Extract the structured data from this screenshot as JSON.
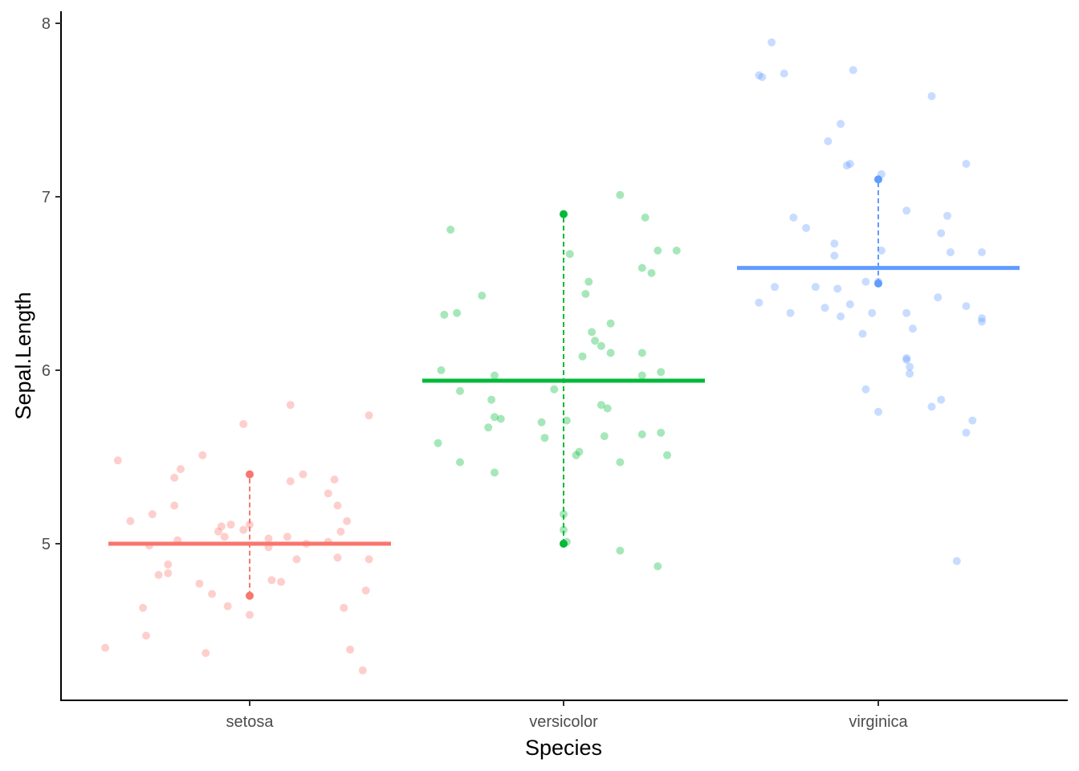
{
  "chart_data": {
    "type": "scatter",
    "subtype": "jitter strip plot with median line and dashed interval",
    "title": "",
    "xlabel": "Species",
    "ylabel": "Sepal.Length",
    "categories": [
      "setosa",
      "versicolor",
      "virginica"
    ],
    "ylim": [
      4.2,
      8.08
    ],
    "yticks": [
      5,
      6,
      7,
      8
    ],
    "grid": false,
    "legend": "none",
    "series": [
      {
        "name": "setosa",
        "color": "#F8766D",
        "center": 5.0,
        "interval": [
          4.7,
          5.4
        ],
        "points": [
          [
            -0.46,
            4.4
          ],
          [
            -0.42,
            5.48
          ],
          [
            -0.38,
            5.13
          ],
          [
            -0.33,
            4.47
          ],
          [
            -0.34,
            4.63
          ],
          [
            -0.32,
            4.99
          ],
          [
            -0.31,
            5.17
          ],
          [
            -0.29,
            4.82
          ],
          [
            -0.26,
            4.88
          ],
          [
            -0.26,
            4.83
          ],
          [
            -0.24,
            5.22
          ],
          [
            -0.23,
            5.02
          ],
          [
            -0.24,
            5.38
          ],
          [
            -0.22,
            5.43
          ],
          [
            -0.16,
            4.77
          ],
          [
            -0.15,
            5.51
          ],
          [
            -0.14,
            4.37
          ],
          [
            -0.12,
            4.71
          ],
          [
            -0.1,
            5.07
          ],
          [
            -0.09,
            5.1
          ],
          [
            -0.08,
            5.04
          ],
          [
            -0.07,
            4.64
          ],
          [
            -0.06,
            5.11
          ],
          [
            -0.02,
            5.69
          ],
          [
            -0.02,
            5.08
          ],
          [
            0.0,
            4.59
          ],
          [
            0.0,
            5.11
          ],
          [
            0.06,
            5.03
          ],
          [
            0.06,
            4.98
          ],
          [
            0.07,
            4.79
          ],
          [
            0.1,
            4.78
          ],
          [
            0.12,
            5.04
          ],
          [
            0.13,
            5.8
          ],
          [
            0.13,
            5.36
          ],
          [
            0.15,
            4.91
          ],
          [
            0.17,
            5.4
          ],
          [
            0.18,
            5.0
          ],
          [
            0.25,
            5.01
          ],
          [
            0.25,
            5.29
          ],
          [
            0.27,
            5.37
          ],
          [
            0.28,
            5.22
          ],
          [
            0.28,
            4.92
          ],
          [
            0.29,
            5.07
          ],
          [
            0.3,
            4.63
          ],
          [
            0.31,
            5.13
          ],
          [
            0.32,
            4.39
          ],
          [
            0.36,
            4.27
          ],
          [
            0.37,
            4.73
          ],
          [
            0.38,
            5.74
          ],
          [
            0.38,
            4.91
          ]
        ]
      },
      {
        "name": "versicolor",
        "color": "#00BA38",
        "center": 5.94,
        "interval": [
          5.0,
          6.9
        ],
        "points": [
          [
            -0.4,
            5.58
          ],
          [
            -0.39,
            6.0
          ],
          [
            -0.38,
            6.32
          ],
          [
            -0.36,
            6.81
          ],
          [
            -0.34,
            6.33
          ],
          [
            -0.33,
            5.88
          ],
          [
            -0.33,
            5.47
          ],
          [
            -0.26,
            6.43
          ],
          [
            -0.24,
            5.67
          ],
          [
            -0.23,
            5.83
          ],
          [
            -0.22,
            5.41
          ],
          [
            -0.22,
            5.97
          ],
          [
            -0.22,
            5.73
          ],
          [
            -0.2,
            5.72
          ],
          [
            -0.07,
            5.7
          ],
          [
            -0.06,
            5.61
          ],
          [
            -0.03,
            5.89
          ],
          [
            0.0,
            5.17
          ],
          [
            0.0,
            5.08
          ],
          [
            0.01,
            5.01
          ],
          [
            0.01,
            5.71
          ],
          [
            0.02,
            6.67
          ],
          [
            0.04,
            5.51
          ],
          [
            0.05,
            5.53
          ],
          [
            0.06,
            6.08
          ],
          [
            0.07,
            6.44
          ],
          [
            0.08,
            6.51
          ],
          [
            0.09,
            6.22
          ],
          [
            0.1,
            6.17
          ],
          [
            0.12,
            6.14
          ],
          [
            0.12,
            5.8
          ],
          [
            0.13,
            5.62
          ],
          [
            0.14,
            5.78
          ],
          [
            0.15,
            6.27
          ],
          [
            0.15,
            6.1
          ],
          [
            0.18,
            7.01
          ],
          [
            0.18,
            5.47
          ],
          [
            0.25,
            6.1
          ],
          [
            0.25,
            6.59
          ],
          [
            0.25,
            5.63
          ],
          [
            0.25,
            5.97
          ],
          [
            0.26,
            6.88
          ],
          [
            0.28,
            6.56
          ],
          [
            0.3,
            4.87
          ],
          [
            0.3,
            6.69
          ],
          [
            0.31,
            5.64
          ],
          [
            0.31,
            5.99
          ],
          [
            0.33,
            5.51
          ],
          [
            0.36,
            6.69
          ],
          [
            0.18,
            4.96
          ]
        ]
      },
      {
        "name": "virginica",
        "color": "#619CFF",
        "center": 6.59,
        "interval": [
          6.5,
          7.1
        ],
        "points": [
          [
            -0.38,
            6.39
          ],
          [
            -0.38,
            7.7
          ],
          [
            -0.37,
            7.69
          ],
          [
            -0.33,
            6.48
          ],
          [
            -0.34,
            7.89
          ],
          [
            -0.3,
            7.71
          ],
          [
            -0.28,
            6.33
          ],
          [
            -0.27,
            6.88
          ],
          [
            -0.23,
            6.82
          ],
          [
            -0.2,
            6.48
          ],
          [
            -0.17,
            6.36
          ],
          [
            -0.16,
            7.32
          ],
          [
            -0.14,
            6.73
          ],
          [
            -0.14,
            6.66
          ],
          [
            -0.13,
            6.47
          ],
          [
            -0.12,
            6.31
          ],
          [
            -0.12,
            7.42
          ],
          [
            -0.1,
            7.18
          ],
          [
            -0.09,
            6.38
          ],
          [
            -0.09,
            7.19
          ],
          [
            -0.08,
            7.73
          ],
          [
            -0.05,
            6.21
          ],
          [
            -0.04,
            5.89
          ],
          [
            -0.04,
            6.51
          ],
          [
            -0.02,
            6.33
          ],
          [
            0.0,
            6.51
          ],
          [
            0.0,
            5.76
          ],
          [
            0.01,
            6.69
          ],
          [
            0.01,
            7.13
          ],
          [
            0.09,
            6.06
          ],
          [
            0.09,
            6.07
          ],
          [
            0.09,
            6.33
          ],
          [
            0.09,
            6.92
          ],
          [
            0.1,
            6.02
          ],
          [
            0.1,
            5.98
          ],
          [
            0.11,
            6.24
          ],
          [
            0.17,
            7.58
          ],
          [
            0.17,
            5.79
          ],
          [
            0.19,
            6.42
          ],
          [
            0.2,
            6.79
          ],
          [
            0.2,
            5.83
          ],
          [
            0.22,
            6.89
          ],
          [
            0.23,
            6.68
          ],
          [
            0.25,
            4.9
          ],
          [
            0.28,
            7.19
          ],
          [
            0.28,
            5.64
          ],
          [
            0.28,
            6.37
          ],
          [
            0.3,
            5.71
          ],
          [
            0.33,
            6.3
          ],
          [
            0.33,
            6.68
          ],
          [
            0.33,
            6.28
          ]
        ]
      }
    ]
  }
}
